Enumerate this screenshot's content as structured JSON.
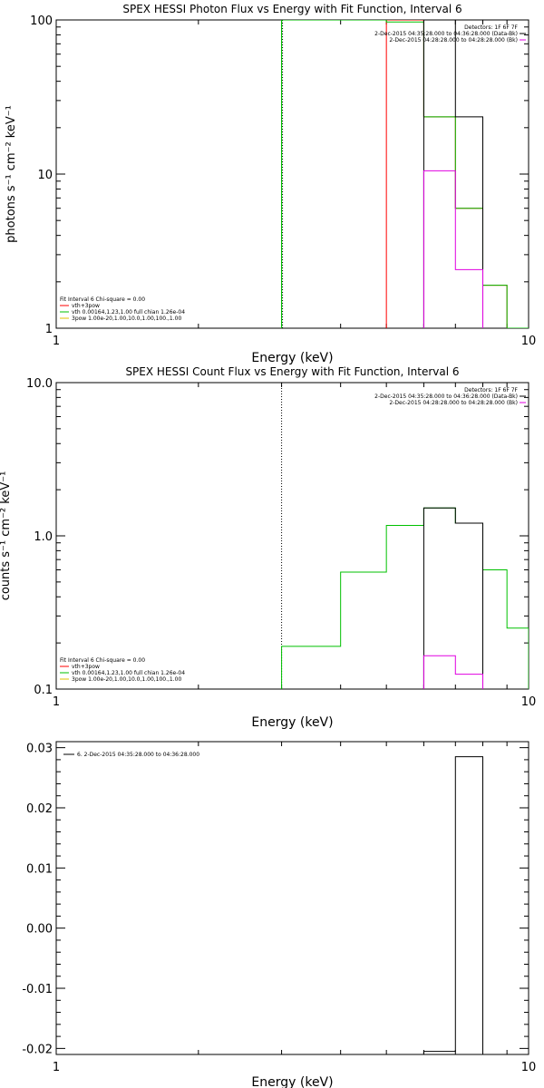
{
  "charts": [
    {
      "title": "SPEX HESSI Photon Flux vs Energy with Fit Function, Interval 6",
      "xlabel": "Energy (keV)",
      "ylabel": "photons s⁻¹ cm⁻² keV⁻¹",
      "yticks": [
        "1",
        "10",
        "100"
      ],
      "xticks": [
        "1",
        "10"
      ],
      "legend_right": [
        "Detectors: 1F 6F 7F",
        "2-Dec-2015 04:35:28.000 to 04:36:28.000 (Data-Bk)",
        "2-Dec-2015 04:28:28.000 to 04:28:28.000 (Bk)"
      ],
      "legend_left": [
        "Fit Interval 6   Chi-square = 0.00",
        "vth+3pow",
        "vth 0.00164,1.23,1.00  full chian 1.26e-04",
        "3pow 1.00e-20,1.00,10.0,1.00,100.,1.00"
      ]
    },
    {
      "title": "SPEX HESSI Count Flux vs Energy with Fit Function, Interval 6",
      "xlabel": "Energy (keV)",
      "ylabel": "counts s⁻¹ cm⁻² keV⁻¹",
      "yticks": [
        "0.1",
        "1.0",
        "10.0"
      ],
      "xticks": [
        "1",
        "10"
      ],
      "legend_right": [
        "Detectors: 1F 6F 7F",
        "2-Dec-2015 04:35:28.000 to 04:36:28.000 (Data-Bk)",
        "2-Dec-2015 04:28:28.000 to 04:28:28.000 (Bk)"
      ],
      "legend_left": [
        "Fit Interval 6   Chi-square = 0.00",
        "vth+3pow",
        "vth 0.00164,1.23,1.00  full chian 1.26e-04",
        "3pow 1.00e-20,1.00,10.0,1.00,100.,1.00"
      ]
    },
    {
      "xlabel": "Energy (keV)",
      "yticks": [
        "-0.02",
        "-0.01",
        "0.00",
        "0.01",
        "0.02",
        "0.03"
      ],
      "xticks": [
        "1",
        "10"
      ],
      "legend_left": [
        "6.  2-Dec-2015 04:35:28.000 to 04:36:28.000"
      ]
    }
  ],
  "chart_data": [
    {
      "type": "line",
      "title": "SPEX HESSI Photon Flux vs Energy with Fit Function, Interval 6",
      "xscale": "log",
      "yscale": "log",
      "xlim": [
        1,
        10
      ],
      "ylim": [
        1,
        100
      ],
      "vline_x": 3.0,
      "series": [
        {
          "name": "vth+3pow",
          "color": "#ff0000",
          "edges": [
            5.0,
            6.0,
            7.0,
            8.0,
            9.0,
            10.0
          ],
          "values": [
            100,
            23.5,
            6.0,
            1.9,
            1.0
          ]
        },
        {
          "color": "#00c000",
          "edges": [
            3.0,
            4.0,
            5.0,
            6.0,
            7.0,
            8.0,
            9.0,
            10.0
          ],
          "values": [
            100,
            100,
            97,
            23.5,
            6.0,
            1.9,
            1.0
          ]
        },
        {
          "color": "#000000",
          "edges": [
            6.0,
            7.0,
            8.0
          ],
          "values": [
            100,
            23.5
          ]
        },
        {
          "color": "#e000e0",
          "edges": [
            6.0,
            7.0,
            8.0
          ],
          "values": [
            10.5,
            2.4
          ]
        }
      ]
    },
    {
      "type": "line",
      "title": "SPEX HESSI Count Flux vs Energy with Fit Function, Interval 6",
      "xscale": "log",
      "yscale": "log",
      "xlim": [
        1,
        10
      ],
      "ylim": [
        0.1,
        10
      ],
      "vline_x": 3.0,
      "series": [
        {
          "color": "#00c000",
          "edges": [
            3.0,
            4.0,
            5.0,
            6.0,
            7.0,
            8.0,
            9.0,
            10.0
          ],
          "values": [
            0.19,
            0.58,
            1.17,
            1.52,
            1.21,
            0.6,
            0.25
          ]
        },
        {
          "color": "#000000",
          "edges": [
            6.0,
            7.0,
            8.0
          ],
          "values": [
            1.52,
            1.21
          ]
        },
        {
          "color": "#e000e0",
          "edges": [
            6.0,
            7.0,
            8.0
          ],
          "values": [
            0.165,
            0.125
          ]
        }
      ]
    },
    {
      "type": "line",
      "xscale": "log",
      "yscale": "linear",
      "xlim": [
        1,
        10
      ],
      "ylim": [
        -0.021,
        0.031
      ],
      "series": [
        {
          "name": "6.  2-Dec-2015 04:35:28.000 to 04:36:28.000",
          "color": "#000000",
          "edges": [
            6.0,
            7.0,
            8.0
          ],
          "values": [
            -0.0205,
            0.0285
          ]
        }
      ]
    }
  ]
}
